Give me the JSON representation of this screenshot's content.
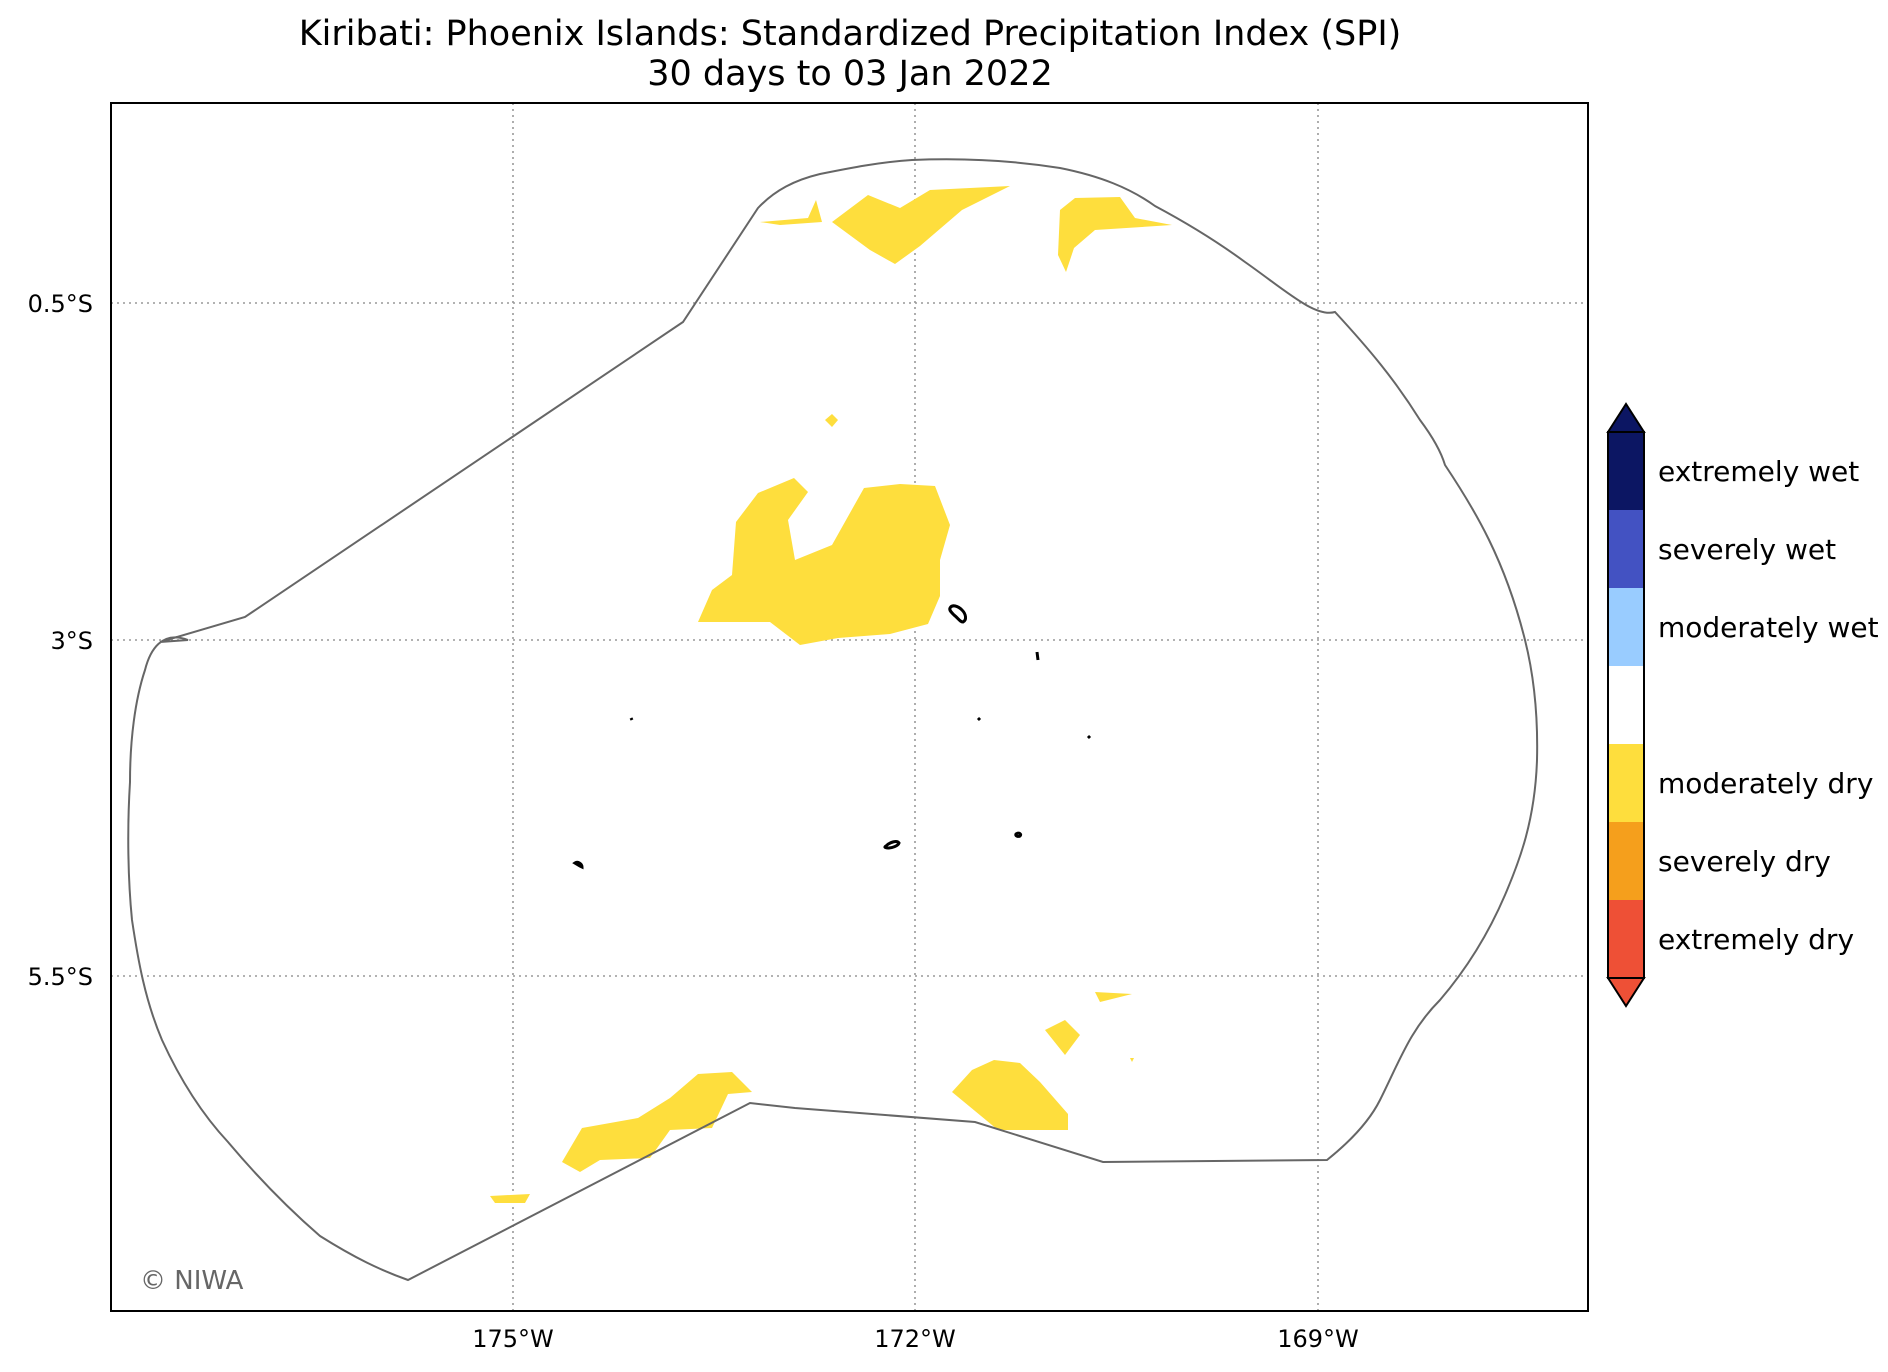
{
  "title": {
    "line1": "Kiribati: Phoenix Islands: Standardized Precipitation Index (SPI)",
    "line2": "30 days to 03 Jan 2022"
  },
  "axes": {
    "lat_ticks": [
      "0.5°S",
      "3°S",
      "5.5°S"
    ],
    "lon_ticks": [
      "175°W",
      "172°W",
      "169°W"
    ],
    "grid": "dotted"
  },
  "colorbar": {
    "categories": [
      {
        "label": "extremely wet",
        "color": "#0c1663"
      },
      {
        "label": "severely wet",
        "color": "#4352c2"
      },
      {
        "label": "moderately wet",
        "color": "#99ccff"
      },
      {
        "label": "",
        "color": "#ffffff"
      },
      {
        "label": "moderately dry",
        "color": "#fede3d"
      },
      {
        "label": "severely dry",
        "color": "#f59f1c"
      },
      {
        "label": "extremely dry",
        "color": "#ee5036"
      }
    ],
    "extend_top_color": "#0c1663",
    "extend_bottom_color": "#ee5036"
  },
  "map": {
    "shaded_category": "moderately dry",
    "boundary_color": "#666666"
  },
  "credit": "© NIWA"
}
